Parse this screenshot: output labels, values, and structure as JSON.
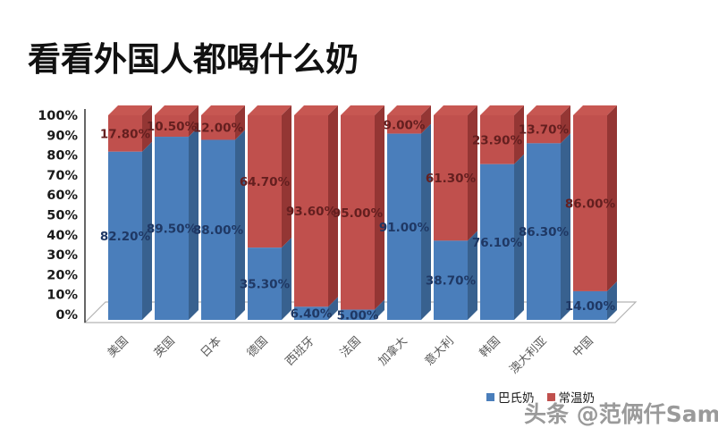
{
  "title": "看看外国人都喝什么奶",
  "watermark": "头条 @范俩仟Sam",
  "legend": [
    {
      "label": "巴氏奶",
      "color": "#4a7ebb"
    },
    {
      "label": "常温奶",
      "color": "#c0504d"
    }
  ],
  "colors": {
    "bar_blue_front": "#4a7ebb",
    "bar_blue_side": "#38618f",
    "bar_red_front": "#c0504d",
    "bar_red_side": "#943634",
    "bar_red_top": "#c75752",
    "label_blue": "#1f3864",
    "label_red": "#641f1f",
    "axis": "#404040",
    "tick_text": "#1a1a1a",
    "category_text": "#595959",
    "floor_fill": "#ffffff",
    "floor_stroke": "#b3b3b3"
  },
  "chart_data": {
    "type": "bar",
    "stacked": true,
    "effect": "3d",
    "grid": false,
    "legend_position": "bottom-right",
    "ylim": [
      0,
      100
    ],
    "y_ticks": [
      "0%",
      "10%",
      "20%",
      "30%",
      "40%",
      "50%",
      "60%",
      "70%",
      "80%",
      "90%",
      "100%"
    ],
    "categories": [
      "美国",
      "英国",
      "日本",
      "德国",
      "西班牙",
      "法国",
      "加拿大",
      "意大利",
      "韩国",
      "澳大利亚",
      "中国"
    ],
    "series": [
      {
        "name": "巴氏奶",
        "color": "#4a7ebb",
        "values": [
          82.2,
          89.5,
          88.0,
          35.3,
          6.4,
          5.0,
          91.0,
          38.7,
          76.1,
          86.3,
          14.0
        ]
      },
      {
        "name": "常温奶",
        "color": "#c0504d",
        "values": [
          17.8,
          10.5,
          12.0,
          64.7,
          93.6,
          95.0,
          9.0,
          61.3,
          23.9,
          13.7,
          86.0
        ]
      }
    ]
  }
}
